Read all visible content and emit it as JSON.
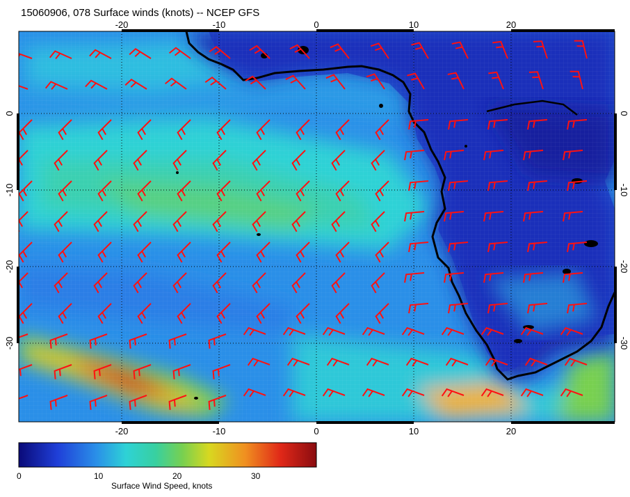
{
  "title": "15060906, 078 Surface winds (knots) -- NCEP GFS",
  "x_ticks": [
    "-20",
    "-10",
    "0",
    "10",
    "20"
  ],
  "y_ticks": [
    "0",
    "-10",
    "-20",
    "-30"
  ],
  "colorbar": {
    "label": "Surface Wind Speed, knots",
    "ticks": [
      "0",
      "10",
      "20",
      "30"
    ],
    "range": [
      0,
      38
    ],
    "colors": [
      "#0a0a78",
      "#1f3fd8",
      "#2a8fe8",
      "#2ed2d6",
      "#38d0a0",
      "#78d050",
      "#d8d820",
      "#f09020",
      "#e02818",
      "#8a0c10"
    ]
  },
  "map": {
    "lon_range": [
      -30,
      30
    ],
    "lat_range": [
      -40,
      10
    ],
    "coastline_color": "#000000",
    "barb_color": "#ff1010",
    "graticule": "dotted"
  }
}
